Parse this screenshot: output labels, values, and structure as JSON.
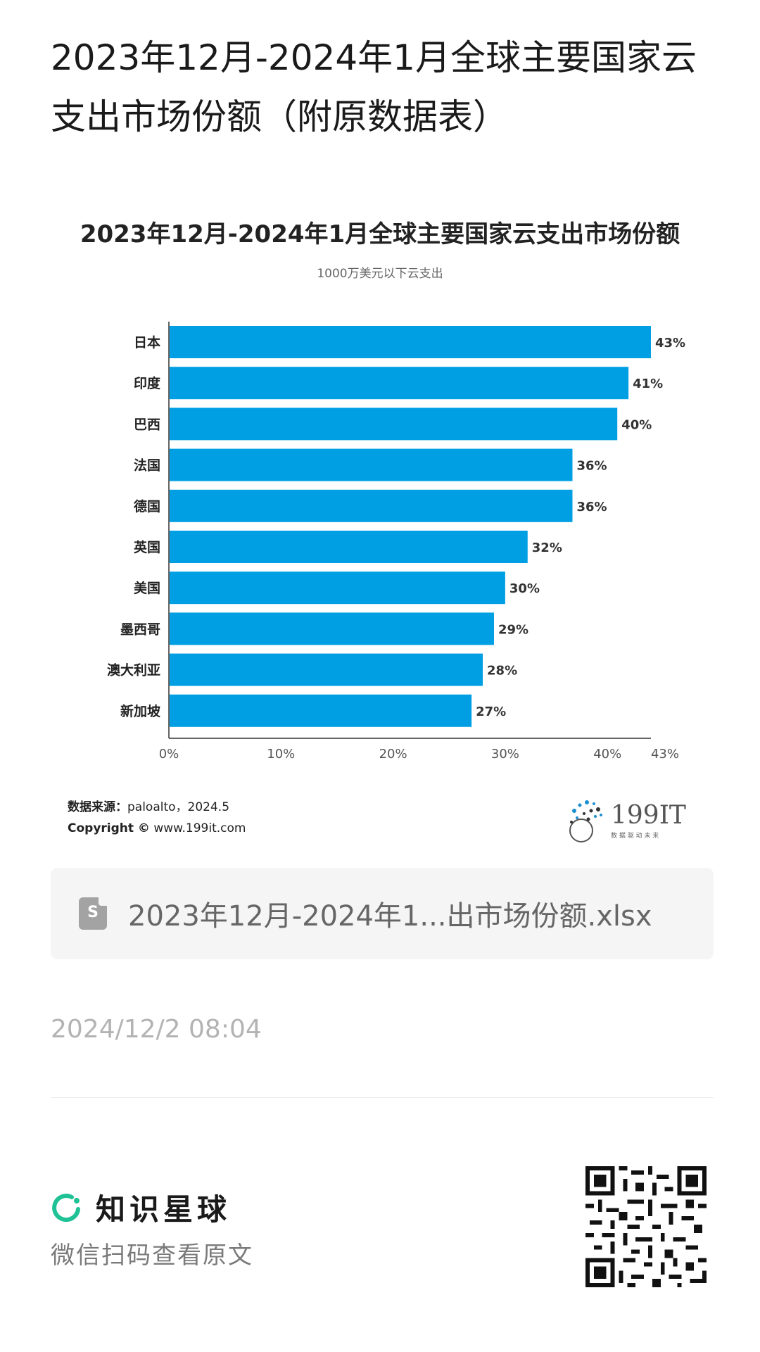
{
  "post": {
    "title": "2023年12月-2024年1月全球主要国家云支出市场份额（附原数据表）",
    "attachment_name": "2023年12月-2024年1...出市场份额.xlsx",
    "attachment_icon": "spreadsheet-file-icon",
    "attachment_icon_letter": "S",
    "timestamp": "2024/12/2 08:04"
  },
  "chart_data": {
    "type": "bar",
    "orientation": "horizontal",
    "title": "2023年12月-2024年1月全球主要国家云支出市场份额",
    "subtitle": "1000万美元以下云支出",
    "categories": [
      "日本",
      "印度",
      "巴西",
      "法国",
      "德国",
      "英国",
      "美国",
      "墨西哥",
      "澳大利亚",
      "新加坡"
    ],
    "values": [
      43,
      41,
      40,
      36,
      36,
      32,
      30,
      29,
      28,
      27
    ],
    "data_labels": [
      "43%",
      "41%",
      "40%",
      "36%",
      "36%",
      "32%",
      "30%",
      "29%",
      "28%",
      "27%"
    ],
    "xlim": [
      0,
      43
    ],
    "x_ticks": [
      0,
      10,
      20,
      30,
      40,
      43
    ],
    "x_tick_labels": [
      "0%",
      "10%",
      "20%",
      "30%",
      "40%",
      "43%"
    ],
    "bar_color": "#009fe3",
    "grid": false,
    "legend": "none"
  },
  "source": {
    "label": "数据来源：",
    "value": "paloalto，2024.5",
    "copyright_label": "Copyright ©",
    "copyright_value": "www.199it.com"
  },
  "logo": {
    "name": "199IT",
    "tagline": "数 据 驱 动 未 来",
    "brand_color": "#2f6f9f"
  },
  "footer": {
    "brand_icon": "planet-ring-icon",
    "brand_name": "知识星球",
    "brand_color": "#1fc295",
    "scan_text": "微信扫码查看原文",
    "qr_icon": "qr-code-icon"
  }
}
